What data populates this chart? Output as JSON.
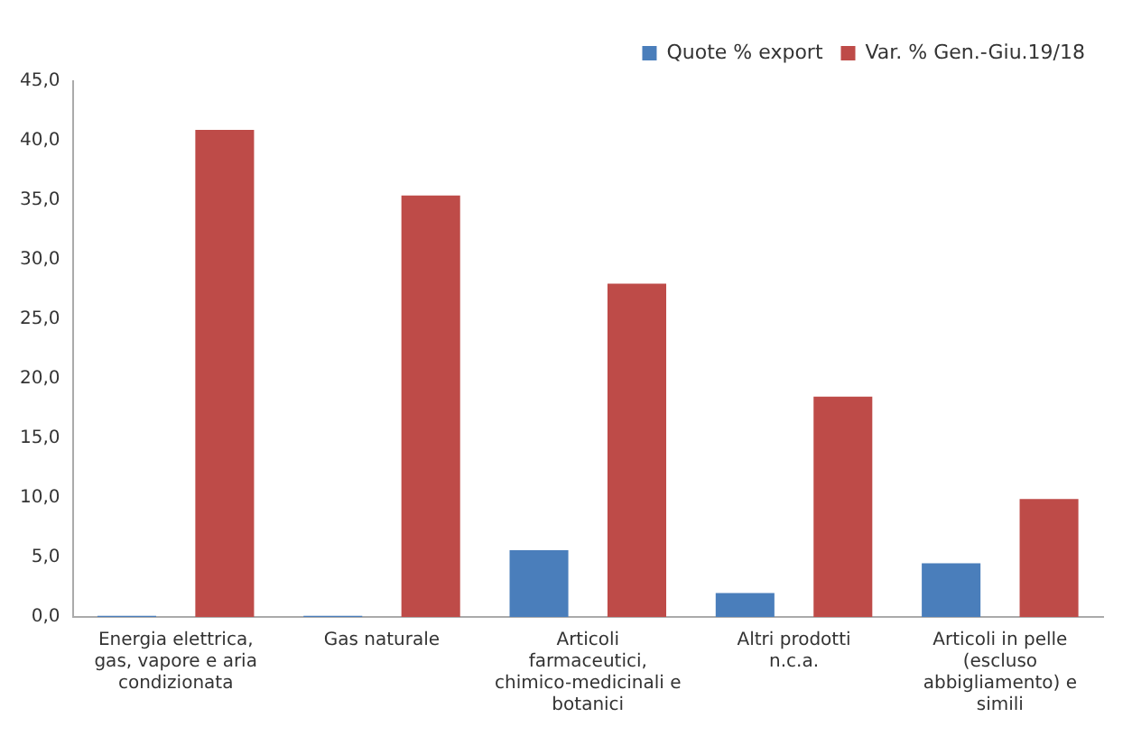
{
  "chart_data": {
    "type": "bar",
    "categories": [
      "Energia elettrica, gas, vapore e aria condizionata",
      "Gas naturale",
      "Articoli farmaceutici, chimico-medicinali e botanici",
      "Altri prodotti n.c.a.",
      "Articoli in pelle (escluso abbigliamento) e simili"
    ],
    "series": [
      {
        "name": "Quote % export",
        "color": "#4a7ebb",
        "values": [
          0.1,
          0.1,
          5.6,
          2.0,
          4.5
        ]
      },
      {
        "name": "Var. % Gen.-Giu.19/18",
        "color": "#be4b48",
        "values": [
          40.9,
          35.4,
          28.0,
          18.5,
          9.9
        ]
      }
    ],
    "ylim": [
      0,
      45
    ],
    "yticks": [
      {
        "value": 0,
        "label": "0,0"
      },
      {
        "value": 5,
        "label": "5,0"
      },
      {
        "value": 10,
        "label": "10,0"
      },
      {
        "value": 15,
        "label": "15,0"
      },
      {
        "value": 20,
        "label": "20,0"
      },
      {
        "value": 25,
        "label": "25,0"
      },
      {
        "value": 30,
        "label": "30,0"
      },
      {
        "value": 35,
        "label": "35,0"
      },
      {
        "value": 40,
        "label": "40,0"
      },
      {
        "value": 45,
        "label": "45,0"
      }
    ],
    "grid": false,
    "legend": "top right"
  }
}
